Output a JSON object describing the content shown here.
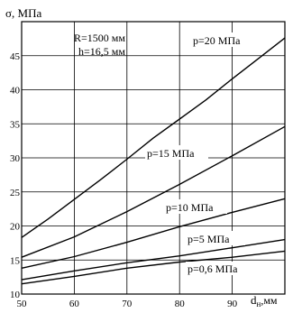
{
  "chart_data": {
    "type": "line",
    "ylabel": "σ, МПа",
    "xlabel": "d",
    "xlabel_sub": "н",
    "xlabel_unit": ",мм",
    "xlim": [
      50,
      100
    ],
    "ylim": [
      10,
      50
    ],
    "x_ticks": [
      "50",
      "60",
      "70",
      "80",
      "90"
    ],
    "y_ticks": [
      "10",
      "15",
      "20",
      "25",
      "30",
      "35",
      "40",
      "45"
    ],
    "x_tick_values": [
      50,
      60,
      70,
      80,
      90
    ],
    "y_tick_values": [
      10,
      15,
      20,
      25,
      30,
      35,
      40,
      45
    ],
    "grid": true,
    "annotations": [
      "R=1500 мм",
      "h=16,5 мм"
    ],
    "series": [
      {
        "name": "p=20 МПа",
        "x": [
          50,
          55,
          60,
          65,
          70,
          75,
          80,
          85,
          90,
          95,
          100
        ],
        "y": [
          18.3,
          21.0,
          23.9,
          26.8,
          29.8,
          32.9,
          35.7,
          38.5,
          41.6,
          44.6,
          47.6
        ]
      },
      {
        "name": "p=15 МПа",
        "x": [
          50,
          60,
          70,
          80,
          90,
          100
        ],
        "y": [
          15.4,
          18.4,
          22.1,
          26.1,
          30.3,
          34.6
        ]
      },
      {
        "name": "p=10 МПа",
        "x": [
          50,
          60,
          70,
          80,
          90,
          100
        ],
        "y": [
          13.8,
          15.5,
          17.6,
          19.9,
          22.0,
          24.0
        ]
      },
      {
        "name": "p=5 МПа",
        "x": [
          50,
          60,
          70,
          80,
          90,
          100
        ],
        "y": [
          12.1,
          13.4,
          14.6,
          15.6,
          16.8,
          18.0
        ]
      },
      {
        "name": "p=0,6 МПа",
        "x": [
          50,
          60,
          70,
          80,
          90,
          100
        ],
        "y": [
          11.5,
          12.6,
          13.8,
          14.7,
          15.4,
          16.3
        ]
      }
    ]
  }
}
